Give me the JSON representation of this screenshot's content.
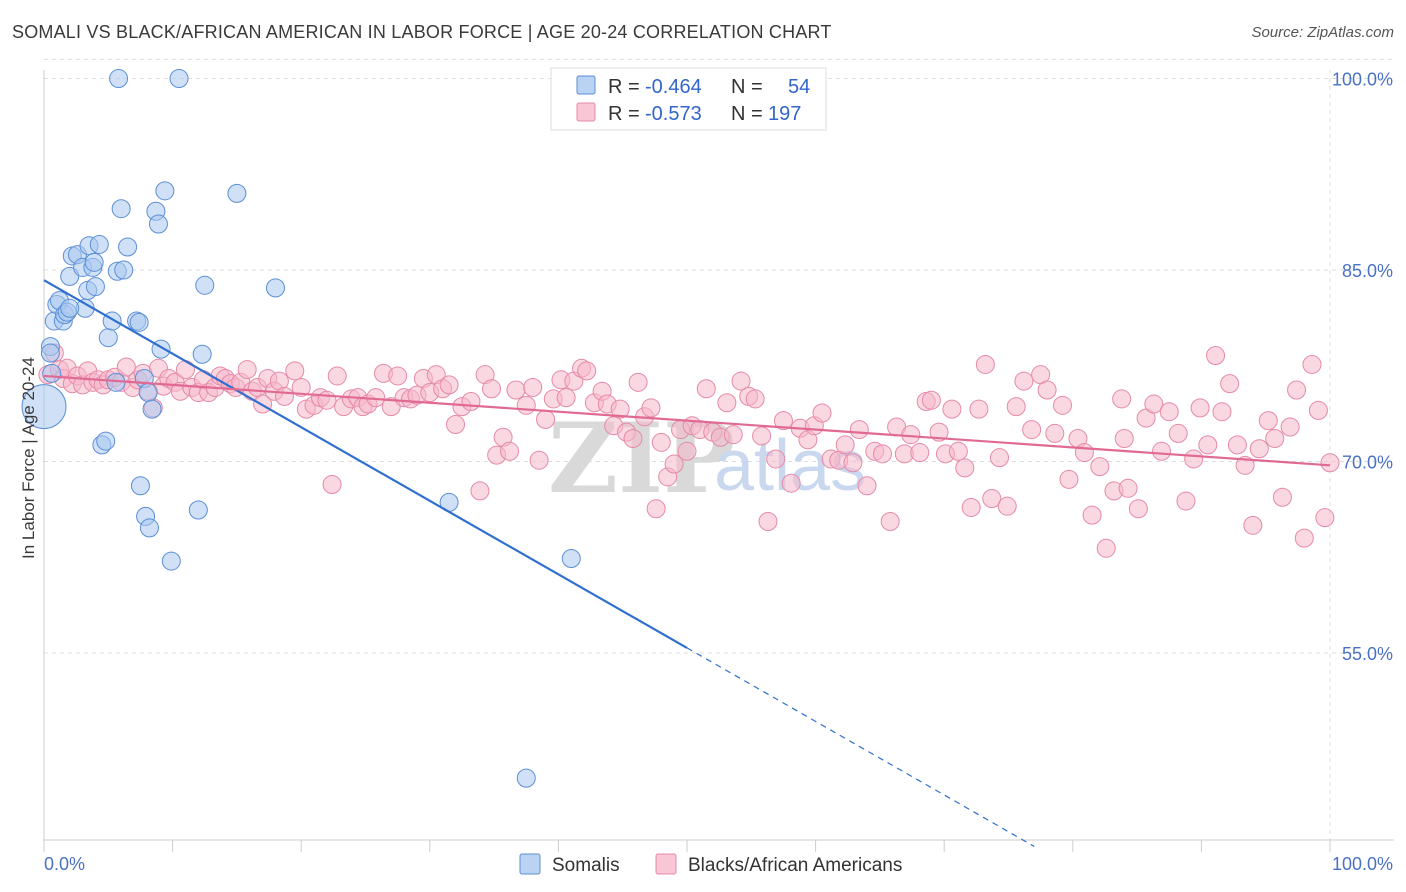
{
  "title": "SOMALI VS BLACK/AFRICAN AMERICAN IN LABOR FORCE | AGE 20-24 CORRELATION CHART",
  "source": "Source: ZipAtlas.com",
  "watermark": {
    "part1": "ZIP",
    "part2": "atlas"
  },
  "colors": {
    "blue_fill": "#a9c8f0",
    "blue_stroke": "#5b8fd6",
    "blue_line": "#2f6fcf",
    "pink_fill": "#f6b8cb",
    "pink_stroke": "#e58aa8",
    "pink_line": "#e06a93",
    "grid": "#dddddd",
    "axis_text": "#4a72c4"
  },
  "legend": {
    "r_label": "R =",
    "n_label": "N =",
    "series": [
      {
        "r": "-0.464",
        "n": "54"
      },
      {
        "r": "-0.573",
        "n": "197"
      }
    ]
  },
  "chart_data": {
    "type": "scatter",
    "xlabel": "",
    "ylabel": "In Labor Force | Age 20-24",
    "xlim": [
      0,
      100
    ],
    "ylim": [
      40,
      101.5
    ],
    "x_tick_labels": [
      "0.0%",
      "100.0%"
    ],
    "y_ticks": [
      55,
      70,
      85,
      100
    ],
    "y_tick_labels": [
      "55.0%",
      "70.0%",
      "85.0%",
      "100.0%"
    ],
    "grid": true,
    "legend_position": "top-center",
    "series": [
      {
        "name": "Somalis",
        "trend": {
          "x0": 0,
          "y0": 84.2,
          "x1": 50,
          "y1": 55.4,
          "dashed_to_x": 77
        },
        "points": [
          [
            0,
            74.3
          ],
          [
            0.5,
            79
          ],
          [
            0.5,
            78.5
          ],
          [
            0.6,
            76.9
          ],
          [
            0.8,
            81
          ],
          [
            1,
            82.3
          ],
          [
            1.2,
            82.6
          ],
          [
            1.5,
            81
          ],
          [
            1.6,
            81.5
          ],
          [
            1.8,
            81.7
          ],
          [
            2,
            84.5
          ],
          [
            2.2,
            86.1
          ],
          [
            2.6,
            86.2
          ],
          [
            3,
            85.2
          ],
          [
            3.2,
            82
          ],
          [
            3.4,
            83.4
          ],
          [
            3.5,
            86.9
          ],
          [
            3.8,
            85.2
          ],
          [
            3.9,
            85.6
          ],
          [
            4,
            83.7
          ],
          [
            4.3,
            87
          ],
          [
            4.5,
            71.3
          ],
          [
            4.8,
            71.6
          ],
          [
            5,
            79.7
          ],
          [
            5.3,
            81
          ],
          [
            5.6,
            76.2
          ],
          [
            5.7,
            84.9
          ],
          [
            5.8,
            100
          ],
          [
            6,
            89.8
          ],
          [
            6.2,
            85
          ],
          [
            6.5,
            86.8
          ],
          [
            7.2,
            81
          ],
          [
            7.4,
            80.9
          ],
          [
            7.5,
            68.1
          ],
          [
            7.8,
            76.5
          ],
          [
            7.9,
            65.7
          ],
          [
            8.1,
            75.4
          ],
          [
            8.2,
            64.8
          ],
          [
            8.4,
            74.1
          ],
          [
            8.7,
            89.6
          ],
          [
            8.9,
            88.6
          ],
          [
            9.1,
            78.8
          ],
          [
            9.4,
            91.2
          ],
          [
            9.9,
            62.2
          ],
          [
            10.5,
            100
          ],
          [
            12,
            66.2
          ],
          [
            12.3,
            78.4
          ],
          [
            12.5,
            83.8
          ],
          [
            15,
            91
          ],
          [
            18,
            83.6
          ],
          [
            31.5,
            66.8
          ],
          [
            37.5,
            45.2
          ],
          [
            41,
            62.4
          ],
          [
            2,
            82
          ]
        ]
      },
      {
        "name": "Blacks/African Americans",
        "trend": {
          "x0": 0,
          "y0": 76.7,
          "x1": 100,
          "y1": 69.7
        },
        "points": [
          [
            0.3,
            76.8
          ],
          [
            0.8,
            78.5
          ],
          [
            1.2,
            77.2
          ],
          [
            1.5,
            76.5
          ],
          [
            1.8,
            77.3
          ],
          [
            2.2,
            76.1
          ],
          [
            2.6,
            76.7
          ],
          [
            3,
            76
          ],
          [
            3.4,
            77.1
          ],
          [
            3.8,
            76.2
          ],
          [
            4.2,
            76.4
          ],
          [
            4.6,
            76
          ],
          [
            5,
            76.4
          ],
          [
            5.5,
            76.6
          ],
          [
            6,
            76.2
          ],
          [
            6.4,
            77.4
          ],
          [
            6.9,
            75.8
          ],
          [
            7.3,
            76.4
          ],
          [
            7.7,
            76.9
          ],
          [
            8.1,
            75.5
          ],
          [
            8.5,
            74.2
          ],
          [
            8.9,
            77.3
          ],
          [
            9.3,
            75.9
          ],
          [
            9.7,
            76.5
          ],
          [
            10.2,
            76.2
          ],
          [
            10.6,
            75.5
          ],
          [
            11,
            77.2
          ],
          [
            11.5,
            75.8
          ],
          [
            12,
            75.4
          ],
          [
            12.4,
            76.4
          ],
          [
            12.8,
            75.4
          ],
          [
            13.3,
            75.8
          ],
          [
            13.7,
            76.7
          ],
          [
            14.1,
            76.5
          ],
          [
            14.5,
            76.1
          ],
          [
            14.9,
            75.8
          ],
          [
            15.3,
            76.2
          ],
          [
            15.8,
            77.2
          ],
          [
            16.2,
            75.5
          ],
          [
            16.6,
            75.8
          ],
          [
            17,
            74.5
          ],
          [
            17.4,
            76.5
          ],
          [
            17.9,
            75.5
          ],
          [
            18.3,
            76.3
          ],
          [
            18.7,
            75.1
          ],
          [
            19.5,
            77.1
          ],
          [
            20,
            75.8
          ],
          [
            20.4,
            74.1
          ],
          [
            21,
            74.4
          ],
          [
            21.5,
            75
          ],
          [
            22,
            74.8
          ],
          [
            22.4,
            68.2
          ],
          [
            22.8,
            76.7
          ],
          [
            23.3,
            74.3
          ],
          [
            23.9,
            74.9
          ],
          [
            24.4,
            75
          ],
          [
            24.8,
            74.3
          ],
          [
            25.2,
            74.5
          ],
          [
            25.8,
            75
          ],
          [
            26.4,
            76.9
          ],
          [
            27,
            74.3
          ],
          [
            27.5,
            76.7
          ],
          [
            28,
            75
          ],
          [
            28.5,
            74.9
          ],
          [
            29,
            75.2
          ],
          [
            29.5,
            76.5
          ],
          [
            30,
            75.4
          ],
          [
            30.5,
            76.8
          ],
          [
            31,
            75.7
          ],
          [
            31.5,
            76
          ],
          [
            32,
            72.9
          ],
          [
            32.5,
            74.3
          ],
          [
            33.2,
            74.7
          ],
          [
            33.9,
            67.7
          ],
          [
            34.3,
            76.8
          ],
          [
            34.8,
            75.7
          ],
          [
            35.2,
            70.5
          ],
          [
            35.7,
            71.9
          ],
          [
            36.2,
            70.8
          ],
          [
            36.7,
            75.6
          ],
          [
            37.5,
            74.4
          ],
          [
            38,
            75.8
          ],
          [
            38.5,
            70.1
          ],
          [
            39,
            73.3
          ],
          [
            39.6,
            74.9
          ],
          [
            40.2,
            76.4
          ],
          [
            40.6,
            75
          ],
          [
            41.2,
            76.3
          ],
          [
            41.8,
            77.3
          ],
          [
            42.2,
            77.1
          ],
          [
            42.8,
            74.6
          ],
          [
            43.4,
            75.5
          ],
          [
            43.8,
            74.5
          ],
          [
            44.3,
            72.8
          ],
          [
            44.8,
            74.1
          ],
          [
            45.3,
            72.3
          ],
          [
            45.8,
            71.8
          ],
          [
            46.2,
            76.2
          ],
          [
            46.7,
            73.5
          ],
          [
            47.2,
            74.2
          ],
          [
            47.6,
            66.3
          ],
          [
            48,
            71.5
          ],
          [
            48.5,
            68.8
          ],
          [
            49,
            69.8
          ],
          [
            49.5,
            72.5
          ],
          [
            50,
            70.8
          ],
          [
            50.4,
            72.8
          ],
          [
            51,
            72.5
          ],
          [
            51.5,
            75.7
          ],
          [
            52,
            72.3
          ],
          [
            52.6,
            71.9
          ],
          [
            53.1,
            74.6
          ],
          [
            53.6,
            72.1
          ],
          [
            54.2,
            76.3
          ],
          [
            54.8,
            75.1
          ],
          [
            55.3,
            74.9
          ],
          [
            55.8,
            72
          ],
          [
            56.3,
            65.3
          ],
          [
            56.9,
            70.2
          ],
          [
            57.5,
            73.2
          ],
          [
            58.1,
            68.3
          ],
          [
            58.8,
            72.6
          ],
          [
            59.4,
            71.7
          ],
          [
            59.9,
            72.8
          ],
          [
            60.5,
            73.8
          ],
          [
            61.2,
            70.2
          ],
          [
            61.8,
            70.1
          ],
          [
            62.3,
            71.3
          ],
          [
            62.9,
            69.9
          ],
          [
            63.4,
            72.5
          ],
          [
            64,
            68.1
          ],
          [
            64.6,
            70.8
          ],
          [
            65.2,
            70.6
          ],
          [
            65.8,
            65.3
          ],
          [
            66.3,
            72.7
          ],
          [
            66.9,
            70.6
          ],
          [
            67.4,
            72.1
          ],
          [
            68.1,
            70.7
          ],
          [
            68.6,
            74.7
          ],
          [
            69,
            74.8
          ],
          [
            69.6,
            72.3
          ],
          [
            70.1,
            70.6
          ],
          [
            70.6,
            74.1
          ],
          [
            71.1,
            70.8
          ],
          [
            71.6,
            69.5
          ],
          [
            72.1,
            66.4
          ],
          [
            72.7,
            74.1
          ],
          [
            73.2,
            77.6
          ],
          [
            73.7,
            67.1
          ],
          [
            74.3,
            70.3
          ],
          [
            74.9,
            66.5
          ],
          [
            75.6,
            74.3
          ],
          [
            76.2,
            76.3
          ],
          [
            76.8,
            72.5
          ],
          [
            77.5,
            76.8
          ],
          [
            78,
            75.6
          ],
          [
            78.6,
            72.2
          ],
          [
            79.2,
            74.4
          ],
          [
            79.7,
            68.6
          ],
          [
            80.4,
            71.8
          ],
          [
            80.9,
            70.7
          ],
          [
            81.5,
            65.8
          ],
          [
            82.1,
            69.6
          ],
          [
            82.6,
            63.2
          ],
          [
            83.2,
            67.7
          ],
          [
            83.8,
            74.9
          ],
          [
            84.3,
            67.9
          ],
          [
            85.1,
            66.3
          ],
          [
            85.7,
            73.4
          ],
          [
            86.3,
            74.5
          ],
          [
            86.9,
            70.8
          ],
          [
            87.5,
            73.9
          ],
          [
            88.2,
            72.2
          ],
          [
            88.8,
            66.9
          ],
          [
            89.4,
            70.2
          ],
          [
            89.9,
            74.2
          ],
          [
            90.5,
            71.3
          ],
          [
            91.1,
            78.3
          ],
          [
            91.6,
            73.9
          ],
          [
            92.2,
            76.1
          ],
          [
            92.8,
            71.3
          ],
          [
            93.4,
            69.7
          ],
          [
            94,
            65
          ],
          [
            94.5,
            71
          ],
          [
            95.2,
            73.2
          ],
          [
            95.7,
            71.8
          ],
          [
            96.3,
            67.2
          ],
          [
            96.9,
            72.7
          ],
          [
            97.4,
            75.6
          ],
          [
            98,
            64
          ],
          [
            98.6,
            77.6
          ],
          [
            99.1,
            74
          ],
          [
            99.6,
            65.6
          ],
          [
            100,
            69.9
          ],
          [
            84,
            71.8
          ]
        ]
      }
    ]
  },
  "bottom_legend": [
    "Somalis",
    "Blacks/African Americans"
  ]
}
